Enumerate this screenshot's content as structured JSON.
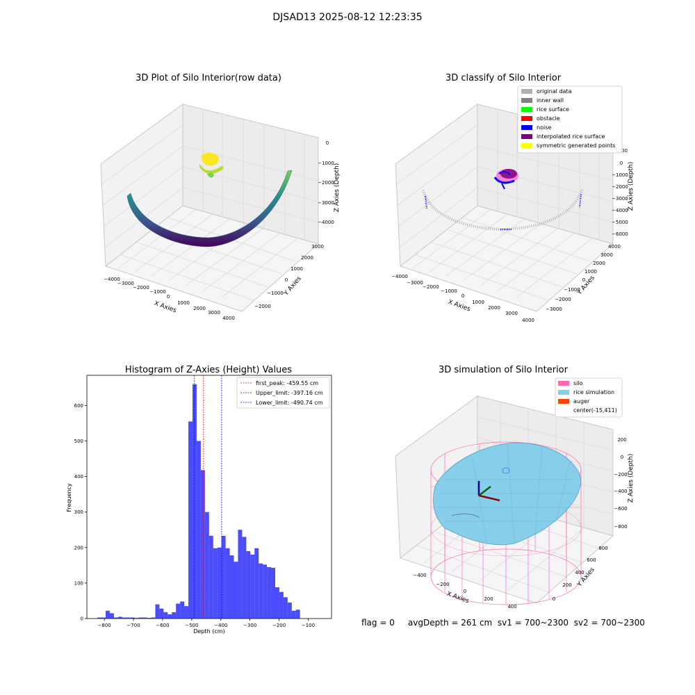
{
  "figure": {
    "suptitle": "DJSAD13 2025-08-12 12:23:35"
  },
  "footer": {
    "flag": "flag = 0",
    "avg_depth": "avgDepth = 261 cm",
    "sv1": "sv1 = 700~2300",
    "sv2": "sv2 = 700~2300"
  },
  "panels": {
    "raw": {
      "title": "3D Plot of Silo Interior(row data)",
      "xlabel": "X Axies",
      "ylabel": "Y Axies",
      "zlabel": "Z Axies (Depth)",
      "xticks": [
        "−4000",
        "−3000",
        "−2000",
        "−1000",
        "0",
        "1000",
        "2000",
        "3000",
        "4000"
      ],
      "yticks": [
        "−2000",
        "−1000",
        "0",
        "1000",
        "2000",
        "3000"
      ],
      "zticks": [
        "0",
        "−1000",
        "−2000",
        "−3000",
        "−4000"
      ],
      "colors": {
        "surface_low": "#440154",
        "surface_mid": "#21918c",
        "surface_high": "#7ad151",
        "peak": "#fde725"
      }
    },
    "classify": {
      "title": "3D classify of Silo Interior",
      "xlabel": "X Axies",
      "ylabel": "Y Axies",
      "zlabel": "Z Axies (Depth)",
      "xticks": [
        "−4000",
        "−3000",
        "−2000",
        "−1000",
        "0",
        "1000",
        "2000",
        "3000",
        "4000"
      ],
      "yticks": [
        "−3000",
        "−2000",
        "−1000",
        "0",
        "1000",
        "2000",
        "3000",
        "4000"
      ],
      "zticks": [
        "1000",
        "0",
        "−1000",
        "−2000",
        "−3000",
        "−4000",
        "−5000",
        "−6000"
      ],
      "legend": [
        {
          "label": "original data",
          "color": "#b0b0b0"
        },
        {
          "label": "inner wall",
          "color": "#808080"
        },
        {
          "label": "rice surface",
          "color": "#00ff00"
        },
        {
          "label": "obstacle",
          "color": "#ff0000"
        },
        {
          "label": "noise",
          "color": "#0000ff"
        },
        {
          "label": "interpolated rice surface",
          "color": "#800080"
        },
        {
          "label": "symmetric generated points",
          "color": "#ffff00"
        }
      ]
    },
    "simulation": {
      "title": "3D simulation of Silo Interior",
      "xlabel": "X Axies",
      "ylabel": "Y Axies",
      "zlabel": "Z Axies (Depth)",
      "xticks": [
        "−400",
        "−200",
        "0",
        "200",
        "400"
      ],
      "yticks": [
        "0",
        "200",
        "400",
        "600",
        "800"
      ],
      "zticks": [
        "200",
        "0",
        "−200",
        "−400",
        "−600",
        "−800"
      ],
      "legend": [
        {
          "label": "silo",
          "color": "#ff69b4"
        },
        {
          "label": "rice simulation",
          "color": "#87ceeb"
        },
        {
          "label": "auger",
          "color": "#ff4500"
        },
        {
          "label": "center(-15,411)",
          "color": "none"
        }
      ]
    }
  },
  "chart_data": {
    "type": "bar",
    "title": "Histogram of Z-Axies (Height) Values",
    "xlabel": "Depth (cm)",
    "ylabel": "Frequency",
    "xlim": [
      -860,
      -20
    ],
    "ylim": [
      0,
      685
    ],
    "bar_color": "#0000ff",
    "bar_alpha": 0.7,
    "xticks": [
      -800,
      -700,
      -600,
      -500,
      -400,
      -300,
      -200,
      -100
    ],
    "yticks": [
      0,
      100,
      200,
      300,
      400,
      500,
      600
    ],
    "bins": {
      "edges": [
        -823.9,
        -809.7,
        -795.5,
        -781.3,
        -767.1,
        -752.9,
        -738.7,
        -724.5,
        -710.3,
        -696.1,
        -681.9,
        -667.7,
        -653.5,
        -639.3,
        -625.1,
        -610.9,
        -596.7,
        -582.5,
        -568.3,
        -554.1,
        -539.9,
        -525.7,
        -511.5,
        -497.3,
        -483.1,
        -468.9,
        -454.7,
        -440.5,
        -426.3,
        -412.1,
        -397.9,
        -383.7,
        -369.5,
        -355.3,
        -341.1,
        -326.9,
        -312.7,
        -298.5,
        -284.3,
        -270.1,
        -255.9,
        -241.7,
        -227.5,
        -213.3,
        -199.1,
        -184.9,
        -170.7,
        -156.5,
        -142.3,
        -128.1,
        -113.9,
        -99.7,
        -85.5,
        -71.3,
        -57.1,
        -42.9
      ],
      "counts": [
        3,
        3,
        22,
        15,
        3,
        5,
        3,
        3,
        3,
        2,
        3,
        3,
        2,
        3,
        40,
        28,
        18,
        12,
        18,
        42,
        48,
        35,
        555,
        660,
        500,
        418,
        300,
        233,
        198,
        200,
        233,
        198,
        178,
        160,
        250,
        230,
        190,
        180,
        198,
        155,
        152,
        145,
        143,
        88,
        75,
        60,
        45,
        22,
        25,
        0,
        0,
        0,
        0,
        0,
        0
      ]
    },
    "series": [
      {
        "name": "first_peak: -459.55 cm",
        "value": -459.55,
        "color": "#ff0000"
      },
      {
        "name": "Upper_limit: -397.16 cm",
        "value": -397.16,
        "color": "#0000ff"
      },
      {
        "name": "Lower_limit: -490.74 cm",
        "value": -490.74,
        "color": "#0000ff"
      }
    ],
    "legend_position": "upper right",
    "grid": false
  }
}
